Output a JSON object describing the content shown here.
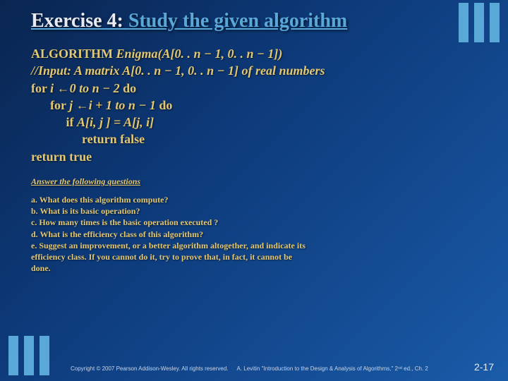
{
  "title_prefix": "Exercise 4: ",
  "title_main": "Study the given algorithm",
  "algo": {
    "l1a": "ALGORITHM ",
    "l1b": "Enigma(A[0. . n − 1, 0. . n − 1])",
    "l2": "//Input: A matrix A[0. . n − 1, 0. . n − 1] of real numbers",
    "l3a": "for ",
    "l3b": "i ←0 to n − 2 ",
    "l3c": "do",
    "l4a": "      for ",
    "l4b": "j ←i + 1 to n − 1 ",
    "l4c": "do",
    "l5a": "           if ",
    "l5b": "A[i, j ] = A[j, i]",
    "l6": "                return false",
    "l7": "return true"
  },
  "qhead": "Answer the following questions",
  "questions": {
    "a": "a. What does this algorithm compute?",
    "b": "b. What is its basic operation?",
    "c": "c. How many times is the basic operation executed ?",
    "d": "d. What is the efficiency class of this algorithm?",
    "e": "e. Suggest an improvement, or a better algorithm altogether, and indicate its",
    "e2": "efficiency class. If you cannot do it, try to prove that, in fact, it cannot be",
    "e3": "done."
  },
  "footer": {
    "copy": "Copyright © 2007 Pearson Addison-Wesley. All rights reserved.",
    "cite": "A. Levitin \"Introduction to the Design & Analysis of Algorithms,\" 2ⁿᵈ ed., Ch. 2",
    "pg": "2-17"
  }
}
